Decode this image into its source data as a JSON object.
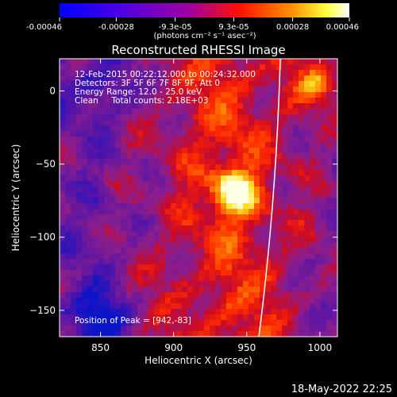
{
  "colorbar": {
    "tick_labels": [
      "-0.00046",
      "-0.00028",
      "-9.3e-05",
      "9.3e-05",
      "0.00028",
      "0.00046"
    ],
    "tick_values": [
      -0.00046,
      -0.00028,
      -9.3e-05,
      9.3e-05,
      0.00028,
      0.00046
    ],
    "range": [
      -0.00046,
      0.00046
    ],
    "units_label": "(photons cm⁻² s⁻¹ asec⁻²)"
  },
  "chart_data": {
    "type": "heatmap",
    "title": "Reconstructed RHESSI Image",
    "xlabel": "Heliocentric X (arcsec)",
    "ylabel": "Heliocentric Y (arcsec)",
    "xlim": [
      822,
      1012
    ],
    "ylim": [
      -168,
      22
    ],
    "x_ticks": [
      850,
      900,
      950,
      1000
    ],
    "x_tick_labels": [
      "850",
      "900",
      "950",
      "1000"
    ],
    "y_ticks": [
      0,
      -50,
      -100,
      -150
    ],
    "y_tick_labels": [
      "0",
      "−50",
      "−100",
      "−150"
    ],
    "annotations": [
      "12-Feb-2015 00:22:12.000 to 00:24:32.000",
      "Detectors: 3F 5F 6F 7F 8F 9F, Att 0",
      "Energy Range: 12.0 - 25.0 keV",
      "Clean     Total counts: 2.18E+03"
    ],
    "peak_label": "Position of Peak = [942,-83]",
    "peak": [
      942,
      -83
    ],
    "colormap": [
      "#0000ff",
      "#8000c0",
      "#ff0000",
      "#ffff00",
      "#ffffff"
    ]
  },
  "footer": {
    "timestamp": "18-May-2022 22:25"
  }
}
